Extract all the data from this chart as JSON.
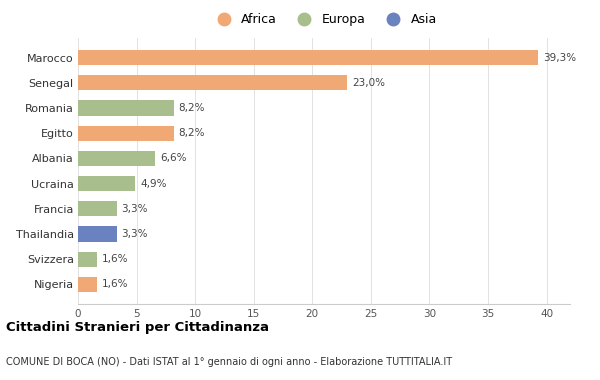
{
  "categories": [
    "Marocco",
    "Senegal",
    "Romania",
    "Egitto",
    "Albania",
    "Ucraina",
    "Francia",
    "Thailandia",
    "Svizzera",
    "Nigeria"
  ],
  "values": [
    39.3,
    23.0,
    8.2,
    8.2,
    6.6,
    4.9,
    3.3,
    3.3,
    1.6,
    1.6
  ],
  "continents": [
    "Africa",
    "Africa",
    "Europa",
    "Africa",
    "Europa",
    "Europa",
    "Europa",
    "Asia",
    "Europa",
    "Africa"
  ],
  "colors": {
    "Africa": "#F0A875",
    "Europa": "#A8BE8C",
    "Asia": "#6B82C0"
  },
  "labels": [
    "39,3%",
    "23,0%",
    "8,2%",
    "8,2%",
    "6,6%",
    "4,9%",
    "3,3%",
    "3,3%",
    "1,6%",
    "1,6%"
  ],
  "title": "Cittadini Stranieri per Cittadinanza",
  "subtitle": "COMUNE DI BOCA (NO) - Dati ISTAT al 1° gennaio di ogni anno - Elaborazione TUTTITALIA.IT",
  "xlim": [
    0,
    42
  ],
  "xticks": [
    0,
    5,
    10,
    15,
    20,
    25,
    30,
    35,
    40
  ],
  "legend_order": [
    "Africa",
    "Europa",
    "Asia"
  ],
  "background_color": "#FFFFFF"
}
